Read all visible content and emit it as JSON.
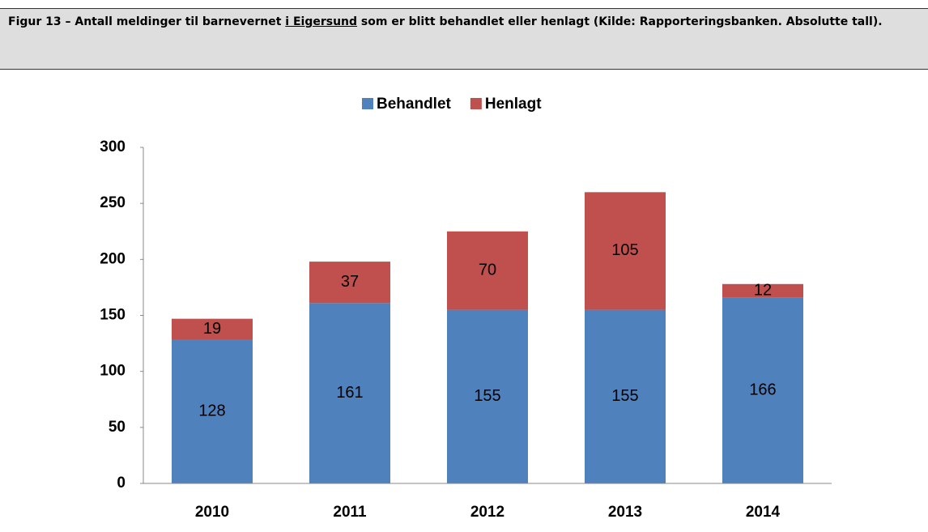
{
  "header": {
    "title_parts": [
      "Figur 13 – Antall meldinger til barnevernet ",
      "i Eigersund",
      " som er blitt behandlet eller henlagt (Kilde: Rapporteringsbanken. Absolutte tall)."
    ]
  },
  "chart_data": {
    "type": "stacked_bar",
    "categories": [
      "2010",
      "2011",
      "2012",
      "2013",
      "2014"
    ],
    "series": [
      {
        "name": "Behandlet",
        "color": "#4f81bd",
        "values": [
          128,
          161,
          155,
          155,
          166
        ]
      },
      {
        "name": "Henlagt",
        "color": "#c0504d",
        "values": [
          19,
          37,
          70,
          105,
          12
        ]
      }
    ],
    "ylim": [
      0,
      300
    ],
    "yticks": [
      0,
      50,
      100,
      150,
      200,
      250,
      300
    ],
    "grid": false,
    "legend": "top"
  }
}
